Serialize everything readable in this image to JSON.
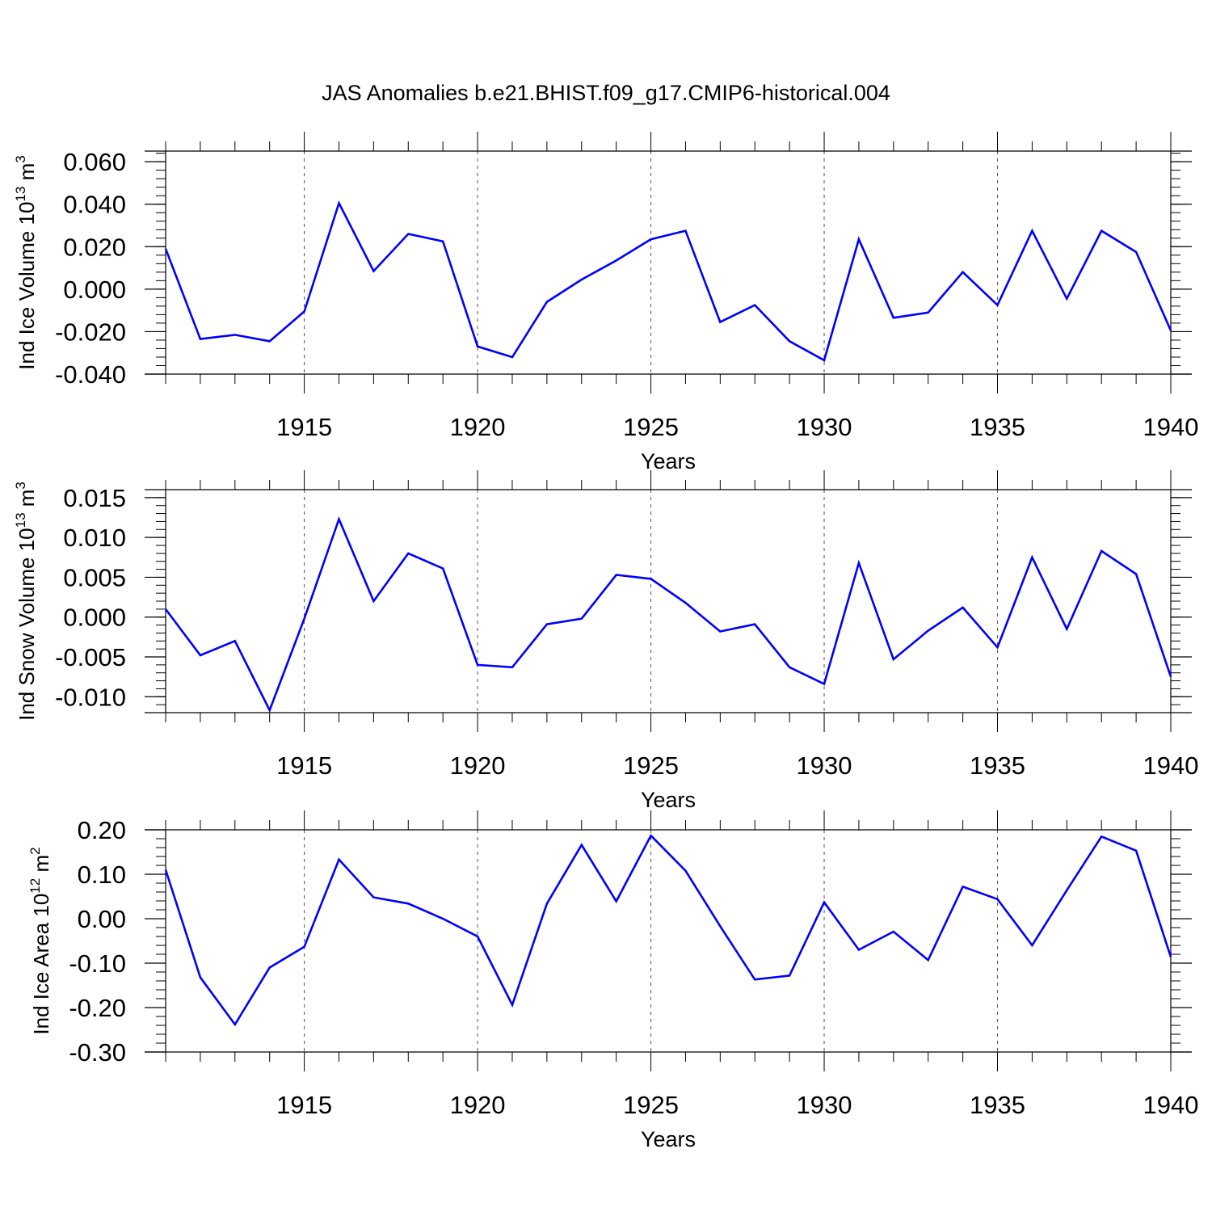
{
  "figure": {
    "title": "JAS Anomalies b.e21.BHIST.f09_g17.CMIP6-historical.004",
    "line_color": "#0000ff"
  },
  "chart_data": [
    {
      "type": "line",
      "ylabel": "Ind Ice Volume 10",
      "ylabel_exp": "13",
      "ylabel_unit": "m",
      "ylabel_unit_exp": "3",
      "xlabel": "Years",
      "xlim": [
        1911,
        1940
      ],
      "ylim": [
        -0.04,
        0.065
      ],
      "x_ticks": [
        1915,
        1920,
        1925,
        1930,
        1935,
        1940
      ],
      "y_ticks": [
        -0.04,
        -0.02,
        0.0,
        0.02,
        0.04,
        0.06
      ],
      "y_tick_labels": [
        "-0.040",
        "-0.020",
        "0.000",
        "0.020",
        "0.040",
        "0.060"
      ],
      "y_minor_step": 0.004,
      "x": [
        1911,
        1912,
        1913,
        1914,
        1915,
        1916,
        1917,
        1918,
        1919,
        1920,
        1921,
        1922,
        1923,
        1924,
        1925,
        1926,
        1927,
        1928,
        1929,
        1930,
        1931,
        1932,
        1933,
        1934,
        1935,
        1936,
        1937,
        1938,
        1939,
        1940
      ],
      "values": [
        0.019,
        -0.0235,
        -0.0215,
        -0.0245,
        -0.0105,
        0.0405,
        0.0085,
        0.026,
        0.0225,
        -0.027,
        -0.032,
        -0.006,
        0.0045,
        0.0135,
        0.0235,
        0.0275,
        -0.0155,
        -0.0075,
        -0.0245,
        -0.0335,
        0.0235,
        -0.0135,
        -0.011,
        0.008,
        -0.0075,
        0.0275,
        -0.0045,
        0.0275,
        0.0175,
        -0.0195
      ],
      "grid": "vertical dashed at major x ticks"
    },
    {
      "type": "line",
      "ylabel": "Ind Snow Volume 10",
      "ylabel_exp": "13",
      "ylabel_unit": "m",
      "ylabel_unit_exp": "3",
      "xlabel": "Years",
      "xlim": [
        1911,
        1940
      ],
      "ylim": [
        -0.012,
        0.016
      ],
      "x_ticks": [
        1915,
        1920,
        1925,
        1930,
        1935,
        1940
      ],
      "y_ticks": [
        -0.01,
        -0.005,
        0.0,
        0.005,
        0.01,
        0.015
      ],
      "y_tick_labels": [
        "-0.010",
        "-0.005",
        "0.000",
        "0.005",
        "0.010",
        "0.015"
      ],
      "y_minor_step": 0.001,
      "x": [
        1911,
        1912,
        1913,
        1914,
        1915,
        1916,
        1917,
        1918,
        1919,
        1920,
        1921,
        1922,
        1923,
        1924,
        1925,
        1926,
        1927,
        1928,
        1929,
        1930,
        1931,
        1932,
        1933,
        1934,
        1935,
        1936,
        1937,
        1938,
        1939,
        1940
      ],
      "values": [
        0.001,
        -0.0048,
        -0.003,
        -0.0117,
        -0.0002,
        0.0123,
        0.002,
        0.008,
        0.0061,
        -0.006,
        -0.0063,
        -0.0009,
        -0.0002,
        0.0053,
        0.0048,
        0.0018,
        -0.0018,
        -0.0009,
        -0.0063,
        -0.0084,
        0.0068,
        -0.0053,
        -0.0017,
        0.0012,
        -0.0038,
        0.0075,
        -0.0015,
        0.0083,
        0.0054,
        -0.0075
      ],
      "grid": "vertical dashed at major x ticks"
    },
    {
      "type": "line",
      "ylabel": "Ind Ice Area 10",
      "ylabel_exp": "12",
      "ylabel_unit": "m",
      "ylabel_unit_exp": "2",
      "xlabel": "Years",
      "xlim": [
        1911,
        1940
      ],
      "ylim": [
        -0.3,
        0.2
      ],
      "x_ticks": [
        1915,
        1920,
        1925,
        1930,
        1935,
        1940
      ],
      "y_ticks": [
        -0.3,
        -0.2,
        -0.1,
        0.0,
        0.1,
        0.2
      ],
      "y_tick_labels": [
        "-0.30",
        "-0.20",
        "-0.10",
        "0.00",
        "0.10",
        "0.20"
      ],
      "y_minor_step": 0.02,
      "x": [
        1911,
        1912,
        1913,
        1914,
        1915,
        1916,
        1917,
        1918,
        1919,
        1920,
        1921,
        1922,
        1923,
        1924,
        1925,
        1926,
        1927,
        1928,
        1929,
        1930,
        1931,
        1932,
        1933,
        1934,
        1935,
        1936,
        1937,
        1938,
        1939,
        1940
      ],
      "values": [
        0.11,
        -0.132,
        -0.238,
        -0.11,
        -0.063,
        0.133,
        0.048,
        0.034,
        0.0,
        -0.04,
        -0.194,
        0.034,
        0.166,
        0.039,
        0.187,
        0.108,
        -0.017,
        -0.137,
        -0.128,
        0.037,
        -0.07,
        -0.029,
        -0.093,
        0.072,
        0.044,
        -0.06,
        0.064,
        0.185,
        0.153,
        -0.086
      ],
      "grid": "vertical dashed at major x ticks"
    }
  ]
}
